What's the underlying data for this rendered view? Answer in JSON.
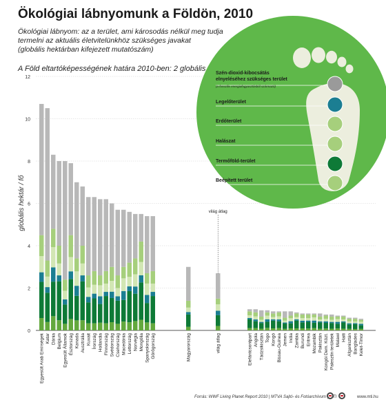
{
  "header": {
    "title": "Ökológiai lábnyomunk a Földön, 2010",
    "subtitle_lines": [
      "Ökológiai lábnyom: az a terület, ami károsodás nélkül meg tudja",
      "termelni az aktuális életvitelünkhöz szükséges javakat",
      "(globális hektárban kifejezett mutatószám)"
    ],
    "capacity_note": "A Föld eltartóképességének határa 2010-ben: 2 globális hektár/fő"
  },
  "footer": {
    "source": "Forrás: WWF Living Planet Report 2010 | MTVA Sajtó- és Fotóarchívum | MTI",
    "url": "www.mti.hu"
  },
  "colors": {
    "carbon": "#b8b8b8",
    "cropland": "#0e7a37",
    "grazing": "#a6cf7c",
    "forest": "#d2e6b4",
    "fishing": "#1b7e92",
    "built": "#63a83d",
    "circle": "#5fb84a",
    "foot": "#eceede"
  },
  "legend": {
    "items": [
      {
        "label": "Szén-dioxid-kibocsátás elnyeléséhez szükséges terület",
        "note": "(a fosszilis energiafogyasztásból származó)",
        "icon": "city-smoke-icon"
      },
      {
        "label": "Legelőterület",
        "icon": "cow-icon"
      },
      {
        "label": "Erdőterület",
        "icon": "trees-icon"
      },
      {
        "label": "Halászat",
        "icon": "fish-icon"
      },
      {
        "label": "Termőföld-terület",
        "icon": "wheat-icon"
      },
      {
        "label": "Beépített terület",
        "icon": "building-icon"
      }
    ]
  },
  "chart_data": {
    "type": "bar",
    "stacked": true,
    "ylabel": "globális hektár / fő",
    "ylim": [
      0,
      12
    ],
    "yticks": [
      0,
      2,
      4,
      6,
      8,
      10,
      12
    ],
    "annotation": "világ átlag",
    "series_order": [
      "Beépített terület",
      "Termőföld-terület",
      "Halászat",
      "Erdőterület",
      "Legelőterület",
      "Szén-dioxid-kibocsátás elnyeléséhez szükséges terület"
    ],
    "groups": [
      {
        "categories": [
          "Egyesült Arab Emírségek",
          "Katar",
          "Dánia",
          "Belgium",
          "Egyesült Államok",
          "Észtország",
          "Kanada",
          "Ausztrália",
          "Kuvait",
          "Írország",
          "Hollandia",
          "Finnország",
          "Svédország",
          "Csehország",
          "Macedónia",
          "Lettország",
          "Norvégia",
          "Mongólia",
          "Spanyolország",
          "Görögország"
        ],
        "totals": [
          10.7,
          10.5,
          8.3,
          8.0,
          8.0,
          7.9,
          7.0,
          6.8,
          6.3,
          6.3,
          6.2,
          6.2,
          6.0,
          5.7,
          5.7,
          5.6,
          5.5,
          5.5,
          5.4,
          5.4
        ],
        "carbon": [
          6.2,
          7.2,
          3.5,
          4.0,
          5.6,
          3.4,
          3.6,
          2.8,
          3.7,
          3.5,
          3.6,
          3.4,
          3.0,
          3.1,
          2.7,
          2.4,
          2.1,
          1.3,
          2.7,
          2.6
        ]
      },
      {
        "categories": [
          "Magyarország"
        ],
        "totals": [
          3.0
        ],
        "carbon": [
          1.6
        ]
      },
      {
        "categories": [
          "világ átlag"
        ],
        "totals": [
          2.7
        ],
        "carbon": [
          1.2
        ]
      },
      {
        "categories": [
          "Elefántcsontpart",
          "Angola",
          "Tádzsikisztán",
          "Togo",
          "Kongó",
          "Bissau-Guinea",
          "Jemen",
          "India",
          "Zambia",
          "Burundi",
          "Eritrea",
          "Mozambik",
          "Pakisztán",
          "Kongói Dem. Közt.",
          "Palesztin területek",
          "Malawi",
          "Haiti",
          "Afganisztán",
          "Banglades",
          "Kelet-Timor"
        ],
        "totals": [
          1.0,
          1.0,
          0.95,
          0.95,
          0.9,
          0.9,
          0.9,
          0.9,
          0.85,
          0.8,
          0.8,
          0.8,
          0.8,
          0.75,
          0.75,
          0.7,
          0.7,
          0.6,
          0.6,
          0.55
        ],
        "carbon": [
          0.1,
          0.15,
          0.3,
          0.1,
          0.1,
          0.05,
          0.3,
          0.2,
          0.05,
          0.05,
          0.05,
          0.05,
          0.15,
          0.05,
          0.1,
          0.05,
          0.05,
          0.05,
          0.05,
          0.05
        ]
      }
    ]
  }
}
